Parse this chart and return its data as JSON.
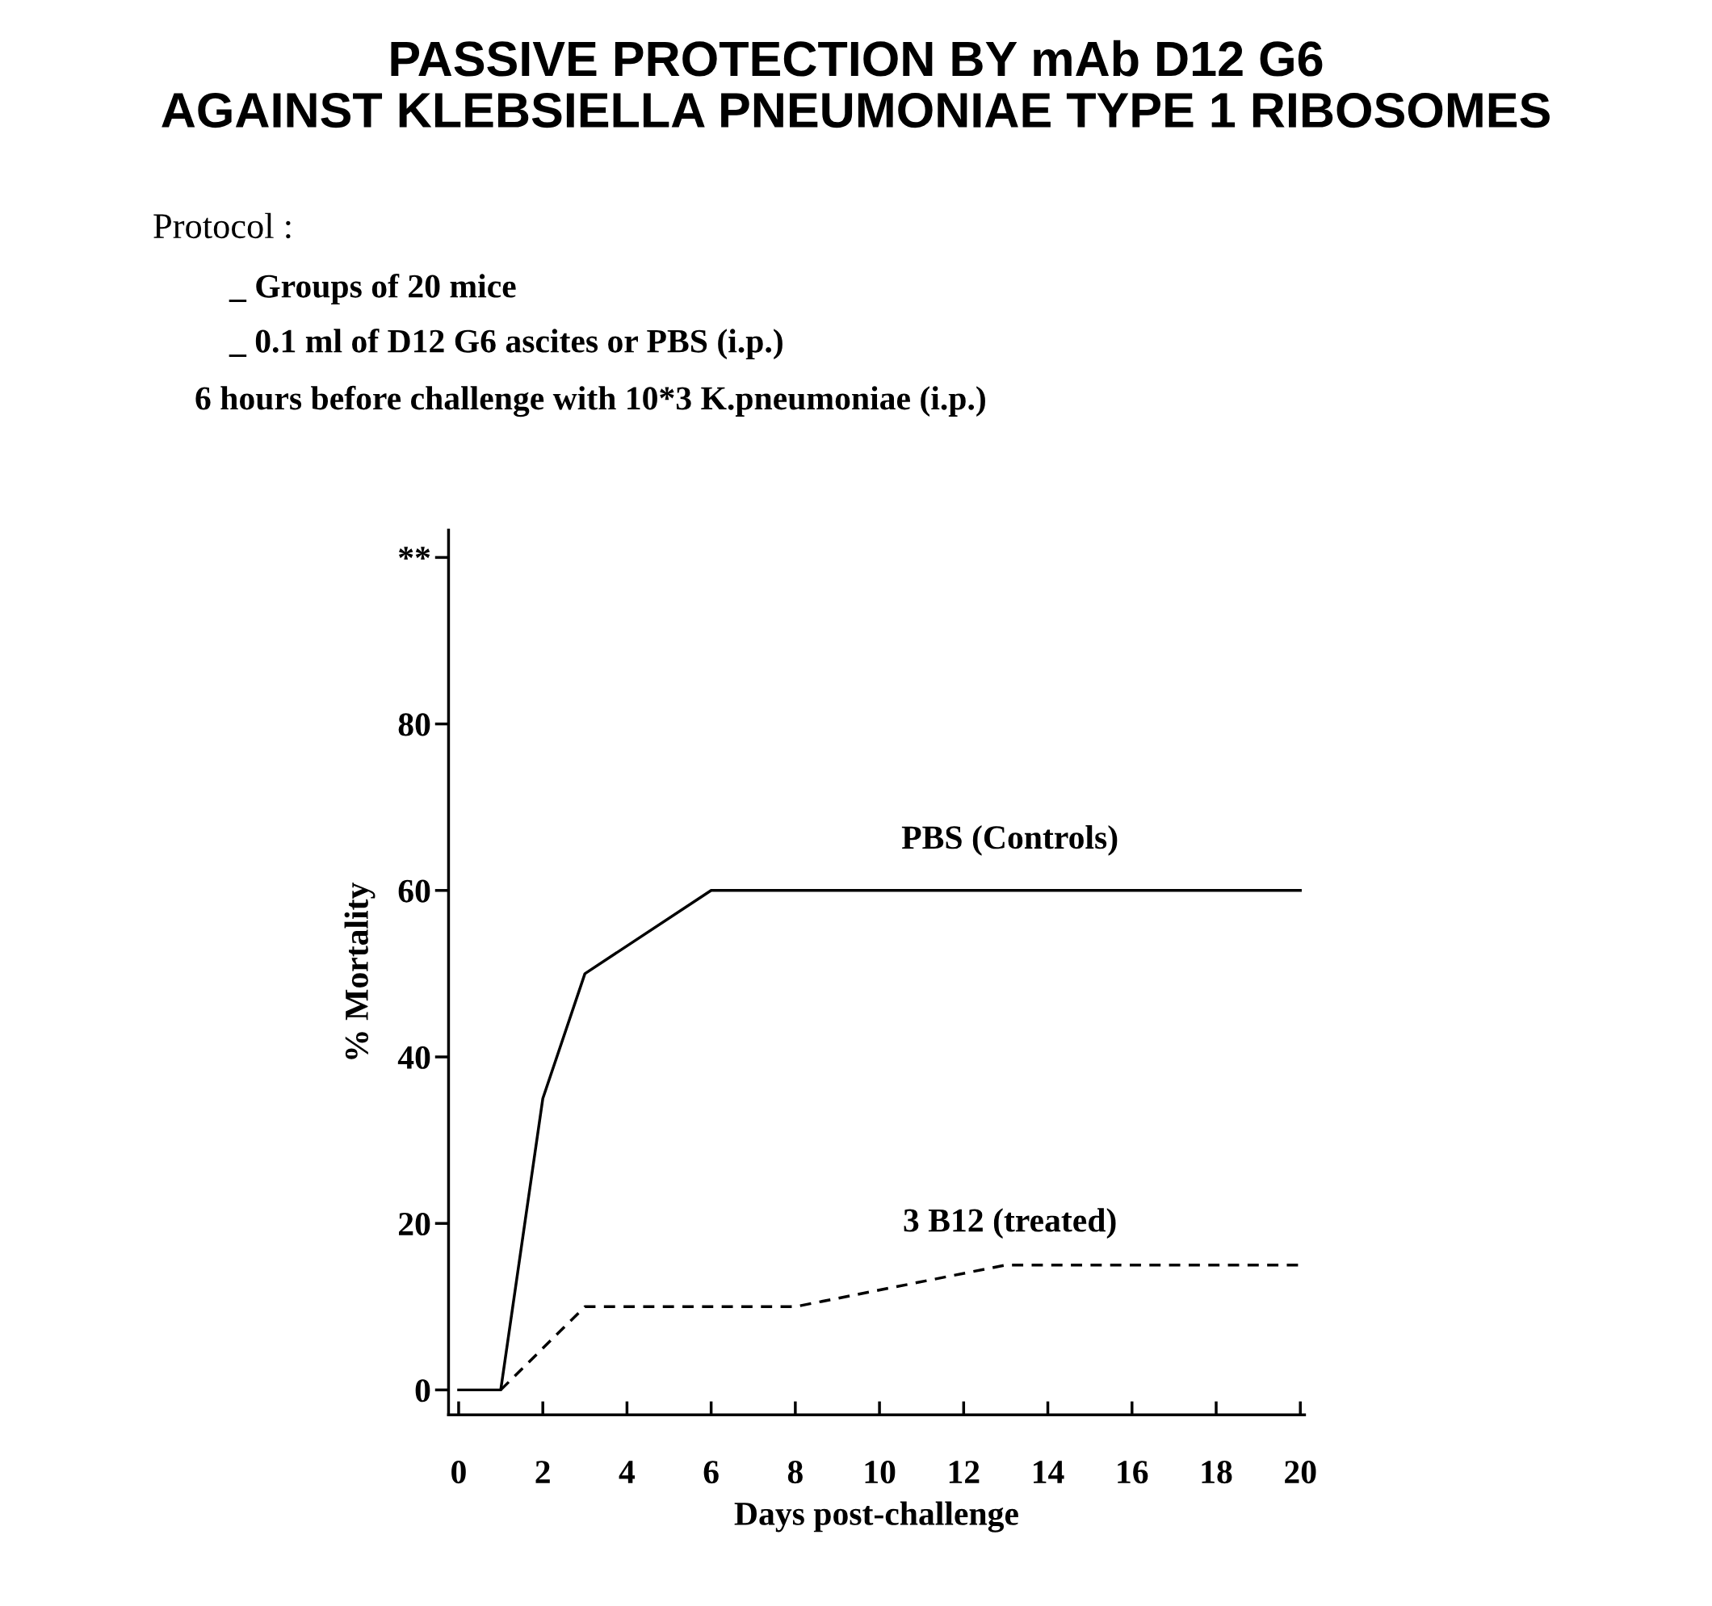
{
  "chart_data": {
    "type": "line",
    "title": "PASSIVE PROTECTION BY mAb D12 G6\nAGAINST KLEBSIELLA PNEUMONIAE TYPE 1 RIBOSOMES",
    "subtitle": "Protocol :",
    "annotations": [
      "_ Groups of 20 mice",
      "_ 0.1 ml of D12 G6 ascites or PBS (i.p.)",
      "6 hours before challenge with 10*3 K.pneumoniae (i.p.)"
    ],
    "xlabel": "Days post-challenge",
    "ylabel": "% Mortality",
    "series": [
      {
        "name": "PBS (Controls)",
        "color": "#000000",
        "line_style": "solid",
        "x": [
          0,
          1,
          2,
          3,
          6,
          20
        ],
        "values": [
          0,
          0,
          35,
          50,
          60,
          60
        ]
      },
      {
        "name": "3 B12 (treated)",
        "color": "#000000",
        "line_style": "dashed",
        "x": [
          1,
          3,
          6,
          8,
          13,
          20
        ],
        "values": [
          0,
          10,
          10,
          10,
          15,
          15
        ]
      }
    ],
    "xlim": [
      -0.24,
      20.1
    ],
    "ylim": [
      -3,
      103.3
    ],
    "xticks": [
      0,
      2,
      4,
      6,
      8,
      10,
      12,
      14,
      16,
      18,
      20
    ],
    "yticks": [
      0,
      20,
      40,
      60,
      80,
      {
        "value": 100,
        "label": "**"
      }
    ],
    "grid": false,
    "legend": false,
    "marker": "none"
  }
}
